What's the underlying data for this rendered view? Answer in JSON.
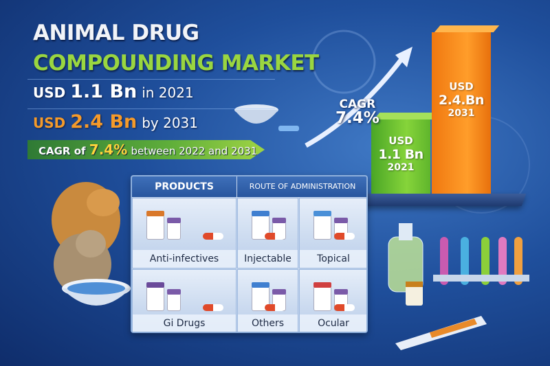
{
  "title": {
    "line1": "ANIMAL DRUG",
    "line2": "COMPOUNDING MARKET"
  },
  "stats": {
    "s2021": {
      "prefix": "USD",
      "value": "1.1 Bn",
      "suffix": "in 2021"
    },
    "s2031": {
      "prefix": "USD",
      "value": "2.4 Bn",
      "suffix": "by 2031"
    },
    "cagr": {
      "prefix": "CAGR of",
      "value": "7.4%",
      "suffix": "between 2022 and 2031"
    }
  },
  "chart": {
    "cagr_label": "CAGR",
    "cagr_value": "7.4%"
  },
  "chart_data": {
    "type": "bar",
    "categories": [
      "2021",
      "2031"
    ],
    "values": [
      1.1,
      2.4
    ],
    "unit": "USD Bn",
    "bars": [
      {
        "l1": "USD",
        "l2": "1.1 Bn",
        "l3": "2021"
      },
      {
        "l1": "USD",
        "l2": "2.4.Bn",
        "l3": "2031"
      }
    ],
    "colors": [
      "#6cc234",
      "#fb8c1c"
    ]
  },
  "panel": {
    "headers": {
      "products": "PRODUCTS",
      "route": "ROUTE OF ADMINISTRATION"
    },
    "cells": [
      "Anti-infectives",
      "Injectable",
      "Topical",
      "Gi Drugs",
      "Others",
      "Ocular"
    ]
  },
  "colors": {
    "background": "#1f4f9c",
    "title_green": "#9ad640",
    "accent_orange": "#f59a2a",
    "highlight_yellow": "#ffd43a"
  }
}
